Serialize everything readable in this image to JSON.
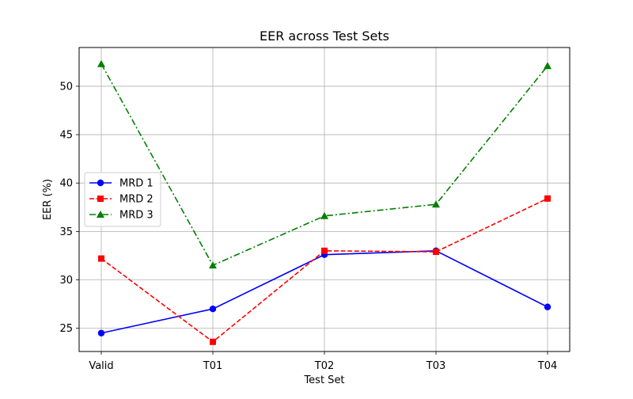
{
  "chart_data": {
    "type": "line",
    "title": "EER across Test Sets",
    "xlabel": "Test Set",
    "ylabel": "EER (%)",
    "categories": [
      "Valid",
      "T01",
      "T02",
      "T03",
      "T04"
    ],
    "yticks": [
      25,
      30,
      35,
      40,
      45,
      50
    ],
    "ylim": [
      22.6,
      54.0
    ],
    "grid": true,
    "legend_position": "center-left",
    "series": [
      {
        "name": "MRD 1",
        "values": [
          24.5,
          27.0,
          32.6,
          33.0,
          27.2
        ],
        "color": "#0000ff",
        "line_style": "solid",
        "marker": "circle"
      },
      {
        "name": "MRD 2",
        "values": [
          32.2,
          23.6,
          33.0,
          32.9,
          38.4
        ],
        "color": "#ff0000",
        "line_style": "dashed",
        "marker": "square"
      },
      {
        "name": "MRD 3",
        "values": [
          52.3,
          31.5,
          36.6,
          37.8,
          52.1
        ],
        "color": "#008000",
        "line_style": "dashdot",
        "marker": "triangle"
      }
    ]
  }
}
